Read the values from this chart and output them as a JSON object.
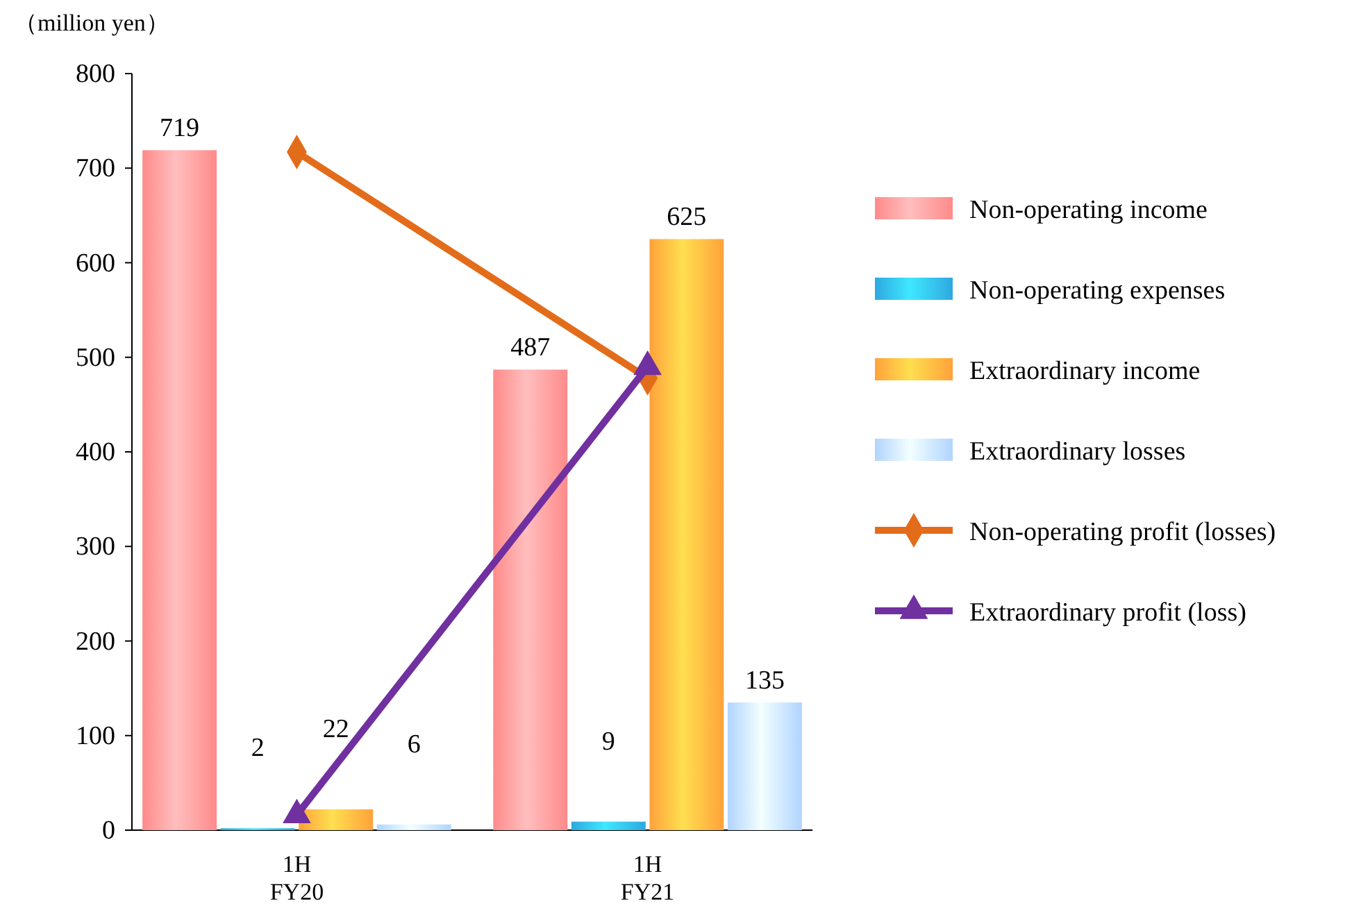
{
  "chart_data": {
    "type": "bar",
    "ylabel": "（million yen）",
    "categories": [
      "1H FY20",
      "1H FY21"
    ],
    "ylim": [
      0,
      800
    ],
    "yticks": [
      0,
      100,
      200,
      300,
      400,
      500,
      600,
      700,
      800
    ],
    "grid": false,
    "legend": "right",
    "series": [
      {
        "name": "Non-operating income",
        "color": "#ff8a8a",
        "values": [
          719,
          487
        ],
        "value_labels": [
          "719",
          "487"
        ]
      },
      {
        "name": "Non-operating expenses",
        "color": "#2ea8e0",
        "values": [
          2,
          9
        ],
        "value_labels": [
          "2",
          "9"
        ]
      },
      {
        "name": "Extraordinary income",
        "color": "#ffa23a",
        "values": [
          22,
          625
        ],
        "value_labels": [
          "22",
          "625"
        ]
      },
      {
        "name": "Extraordinary losses",
        "color": "#b0d4ff",
        "values": [
          6,
          135
        ],
        "value_labels": [
          "6",
          "135"
        ]
      },
      {
        "name": "Non-operating profit (losses)",
        "type": "line",
        "color": "#e36c1a",
        "marker": "diamond",
        "values": [
          717,
          478
        ]
      },
      {
        "name": "Extraordinary profit (loss)",
        "type": "line",
        "color": "#7030a0",
        "marker": "triangle",
        "values": [
          16,
          490
        ]
      }
    ]
  }
}
